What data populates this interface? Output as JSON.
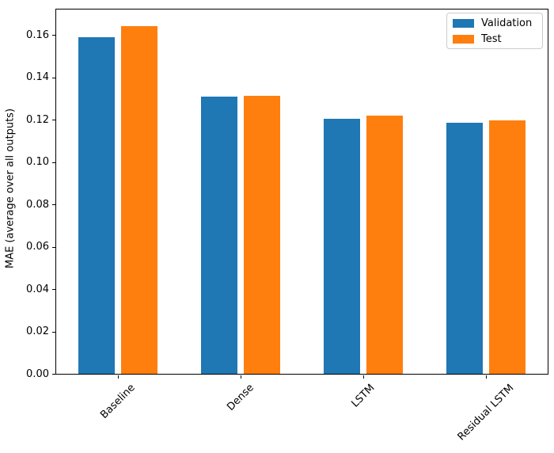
{
  "figure": {
    "background_color": "#ffffff",
    "frame_color": "#000000"
  },
  "chart_data": {
    "type": "bar",
    "title": "",
    "xlabel": "",
    "ylabel": "MAE (average over all outputs)",
    "categories": [
      "Baseline",
      "Dense",
      "LSTM",
      "Residual LSTM"
    ],
    "series": [
      {
        "name": "Validation",
        "color": "#1f77b4",
        "values": [
          0.159,
          0.131,
          0.1205,
          0.1185
        ]
      },
      {
        "name": "Test",
        "color": "#ff7f0e",
        "values": [
          0.164,
          0.1313,
          0.1218,
          0.1195
        ]
      }
    ],
    "ylim": [
      0,
      0.172
    ],
    "yticks": [
      0.0,
      0.02,
      0.04,
      0.06,
      0.08,
      0.1,
      0.12,
      0.14,
      0.16
    ],
    "ytick_labels": [
      "0.00",
      "0.02",
      "0.04",
      "0.06",
      "0.08",
      "0.10",
      "0.12",
      "0.14",
      "0.16"
    ],
    "xtick_rotation_deg": 45,
    "grid": false,
    "legend": {
      "position": "upper-right",
      "entries": [
        "Validation",
        "Test"
      ]
    }
  }
}
